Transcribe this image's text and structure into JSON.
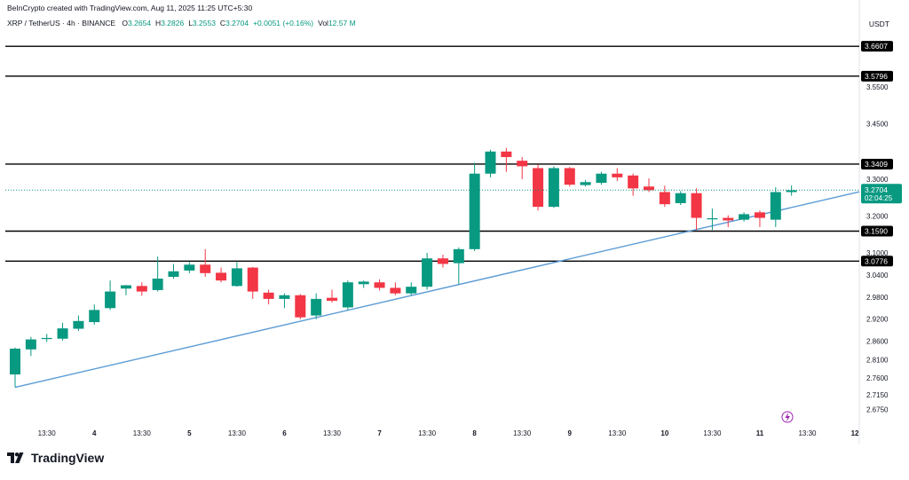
{
  "header": {
    "credit": "BeInCrypto created with TradingView.com, Aug 11, 2025 11:25 UTC+5:30",
    "symbol": "XRP / TetherUS · 4h · BINANCE",
    "ohlc": [
      {
        "label": "O",
        "value": "3.2654"
      },
      {
        "label": "H",
        "value": "3.2826"
      },
      {
        "label": "L",
        "value": "3.2553"
      },
      {
        "label": "C",
        "value": "3.2704"
      },
      {
        "label": "",
        "value": "+0.0051 (+0.16%)"
      },
      {
        "label": "Vol",
        "value": "12.57 M"
      }
    ],
    "currency": "USDT"
  },
  "brand": {
    "logo_text": "TradingView",
    "logo_icon": "tradingview-logo-icon"
  },
  "colors": {
    "up": "#089981",
    "down": "#F23645",
    "trendline": "#5B9BD5",
    "level": "#000000",
    "price_line": "#089981"
  },
  "chart_data": {
    "type": "candlestick",
    "ylim": [
      2.64,
      3.69
    ],
    "yticks": [
      "3.5500",
      "3.4500",
      "3.3000",
      "3.2000",
      "3.1000",
      "3.0400",
      "2.9800",
      "2.9200",
      "2.8600",
      "2.8100",
      "2.7600",
      "2.7150",
      "2.6750"
    ],
    "xtick_labels": [
      {
        "label": "13:30",
        "bar": 2
      },
      {
        "label": "4",
        "bar": 5
      },
      {
        "label": "13:30",
        "bar": 8
      },
      {
        "label": "5",
        "bar": 11
      },
      {
        "label": "13:30",
        "bar": 14
      },
      {
        "label": "6",
        "bar": 17
      },
      {
        "label": "13:30",
        "bar": 20
      },
      {
        "label": "7",
        "bar": 23
      },
      {
        "label": "13:30",
        "bar": 26
      },
      {
        "label": "8",
        "bar": 29
      },
      {
        "label": "13:30",
        "bar": 32
      },
      {
        "label": "9",
        "bar": 35
      },
      {
        "label": "13:30",
        "bar": 38
      },
      {
        "label": "10",
        "bar": 41
      },
      {
        "label": "13:30",
        "bar": 44
      },
      {
        "label": "11",
        "bar": 47
      },
      {
        "label": "13:30",
        "bar": 50
      },
      {
        "label": "12",
        "bar": 53
      }
    ],
    "horizontal_levels": [
      "3.6607",
      "3.5796",
      "3.3409",
      "3.1590",
      "3.0776"
    ],
    "last_price": {
      "value": "3.2704",
      "countdown": "02:04:25"
    },
    "trendline": {
      "from": {
        "bar": 0,
        "price": 2.735
      },
      "to": {
        "bar": 53.5,
        "price": 3.268
      }
    },
    "candles": [
      {
        "o": 2.77,
        "h": 2.843,
        "l": 2.735,
        "c": 2.84
      },
      {
        "o": 2.838,
        "h": 2.872,
        "l": 2.82,
        "c": 2.865
      },
      {
        "o": 2.866,
        "h": 2.88,
        "l": 2.858,
        "c": 2.869
      },
      {
        "o": 2.867,
        "h": 2.91,
        "l": 2.862,
        "c": 2.895
      },
      {
        "o": 2.894,
        "h": 2.93,
        "l": 2.888,
        "c": 2.915
      },
      {
        "o": 2.912,
        "h": 2.96,
        "l": 2.905,
        "c": 2.945
      },
      {
        "o": 2.95,
        "h": 3.025,
        "l": 2.945,
        "c": 2.995
      },
      {
        "o": 3.003,
        "h": 3.013,
        "l": 2.985,
        "c": 3.012
      },
      {
        "o": 3.01,
        "h": 3.02,
        "l": 2.984,
        "c": 2.995
      },
      {
        "o": 2.999,
        "h": 3.09,
        "l": 2.995,
        "c": 3.03
      },
      {
        "o": 3.035,
        "h": 3.07,
        "l": 3.03,
        "c": 3.05
      },
      {
        "o": 3.052,
        "h": 3.075,
        "l": 3.045,
        "c": 3.068
      },
      {
        "o": 3.068,
        "h": 3.11,
        "l": 3.035,
        "c": 3.045
      },
      {
        "o": 3.046,
        "h": 3.06,
        "l": 3.02,
        "c": 3.025
      },
      {
        "o": 3.01,
        "h": 3.075,
        "l": 3.008,
        "c": 3.058
      },
      {
        "o": 3.06,
        "h": 3.062,
        "l": 2.975,
        "c": 2.995
      },
      {
        "o": 2.992,
        "h": 3.0,
        "l": 2.96,
        "c": 2.975
      },
      {
        "o": 2.975,
        "h": 2.99,
        "l": 2.95,
        "c": 2.985
      },
      {
        "o": 2.985,
        "h": 2.988,
        "l": 2.92,
        "c": 2.925
      },
      {
        "o": 2.93,
        "h": 2.99,
        "l": 2.92,
        "c": 2.975
      },
      {
        "o": 2.978,
        "h": 3.0,
        "l": 2.965,
        "c": 2.97
      },
      {
        "o": 2.952,
        "h": 3.025,
        "l": 2.945,
        "c": 3.02
      },
      {
        "o": 3.015,
        "h": 3.025,
        "l": 3.005,
        "c": 3.022
      },
      {
        "o": 3.02,
        "h": 3.028,
        "l": 2.998,
        "c": 3.005
      },
      {
        "o": 3.005,
        "h": 3.02,
        "l": 2.985,
        "c": 2.99
      },
      {
        "o": 2.99,
        "h": 3.02,
        "l": 2.985,
        "c": 3.008
      },
      {
        "o": 3.008,
        "h": 3.1,
        "l": 3.0,
        "c": 3.085
      },
      {
        "o": 3.085,
        "h": 3.095,
        "l": 3.06,
        "c": 3.07
      },
      {
        "o": 3.072,
        "h": 3.115,
        "l": 3.015,
        "c": 3.11
      },
      {
        "o": 3.11,
        "h": 3.345,
        "l": 3.105,
        "c": 3.315
      },
      {
        "o": 3.315,
        "h": 3.38,
        "l": 3.305,
        "c": 3.375
      },
      {
        "o": 3.375,
        "h": 3.385,
        "l": 3.32,
        "c": 3.36
      },
      {
        "o": 3.35,
        "h": 3.36,
        "l": 3.3,
        "c": 3.335
      },
      {
        "o": 3.33,
        "h": 3.34,
        "l": 3.215,
        "c": 3.225
      },
      {
        "o": 3.225,
        "h": 3.335,
        "l": 3.222,
        "c": 3.33
      },
      {
        "o": 3.33,
        "h": 3.333,
        "l": 3.28,
        "c": 3.285
      },
      {
        "o": 3.284,
        "h": 3.298,
        "l": 3.28,
        "c": 3.292
      },
      {
        "o": 3.29,
        "h": 3.32,
        "l": 3.285,
        "c": 3.315
      },
      {
        "o": 3.315,
        "h": 3.33,
        "l": 3.295,
        "c": 3.305
      },
      {
        "o": 3.31,
        "h": 3.315,
        "l": 3.255,
        "c": 3.275
      },
      {
        "o": 3.28,
        "h": 3.302,
        "l": 3.265,
        "c": 3.27
      },
      {
        "o": 3.265,
        "h": 3.282,
        "l": 3.225,
        "c": 3.232
      },
      {
        "o": 3.235,
        "h": 3.268,
        "l": 3.23,
        "c": 3.262
      },
      {
        "o": 3.262,
        "h": 3.275,
        "l": 3.162,
        "c": 3.195
      },
      {
        "o": 3.191,
        "h": 3.22,
        "l": 3.162,
        "c": 3.194
      },
      {
        "o": 3.195,
        "h": 3.202,
        "l": 3.17,
        "c": 3.188
      },
      {
        "o": 3.19,
        "h": 3.21,
        "l": 3.185,
        "c": 3.205
      },
      {
        "o": 3.21,
        "h": 3.215,
        "l": 3.17,
        "c": 3.195
      },
      {
        "o": 3.19,
        "h": 3.278,
        "l": 3.17,
        "c": 3.265
      },
      {
        "o": 3.265,
        "h": 3.283,
        "l": 3.255,
        "c": 3.27
      }
    ]
  }
}
